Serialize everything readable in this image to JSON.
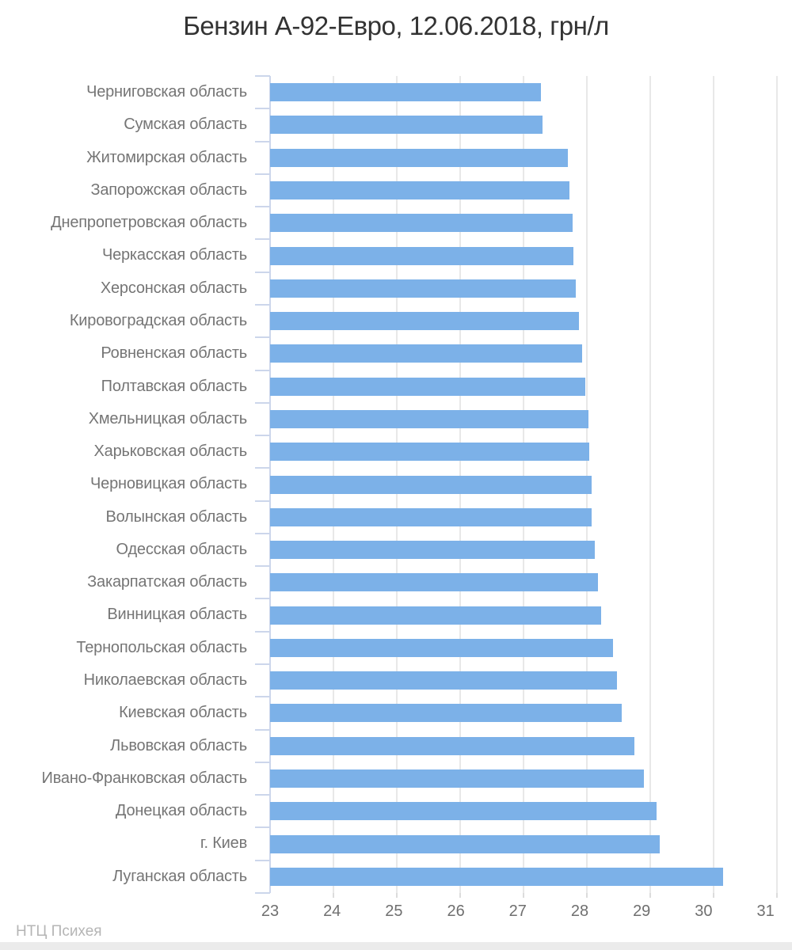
{
  "title": "Бензин А-92-Евро, 12.06.2018, грн/л",
  "footer": "НТЦ Психея",
  "colors": {
    "bar": "#7cb1e8",
    "axis": "#ccd6eb",
    "gridline": "#e8e8e8",
    "title_text": "#333333",
    "label_text": "#757575",
    "footer_text": "#b5b5b5"
  },
  "chart_data": {
    "type": "bar",
    "orientation": "horizontal",
    "title": "Бензин А-92-Евро, 12.06.2018, грн/л",
    "unit": "грн/л",
    "date": "12.06.2018",
    "xlabel": "",
    "ylabel": "",
    "xlim": [
      23,
      31
    ],
    "x_ticks": [
      23,
      24,
      25,
      26,
      27,
      28,
      29,
      30,
      31
    ],
    "grid": true,
    "legend": "none",
    "source": "НТЦ Психея",
    "categories": [
      "Черниговская область",
      "Сумская область",
      "Житомирская область",
      "Запорожская область",
      "Днепропетровская область",
      "Черкасская область",
      "Херсонская область",
      "Кировоградская область",
      "Ровненская область",
      "Полтавская область",
      "Хмельницкая область",
      "Харьковская область",
      "Черновицкая область",
      "Волынская область",
      "Одесская область",
      "Закарпатская область",
      "Винницкая область",
      "Тернопольская область",
      "Николаевская область",
      "Киевская область",
      "Львовская область",
      "Ивано-Франковская область",
      "Донецкая область",
      "г. Киев",
      "Луганская область"
    ],
    "values": [
      27.27,
      27.3,
      27.7,
      27.72,
      27.77,
      27.79,
      27.82,
      27.87,
      27.92,
      27.97,
      28.02,
      28.04,
      28.07,
      28.07,
      28.12,
      28.17,
      28.22,
      28.41,
      28.47,
      28.55,
      28.75,
      28.9,
      29.1,
      29.15,
      30.15
    ]
  }
}
